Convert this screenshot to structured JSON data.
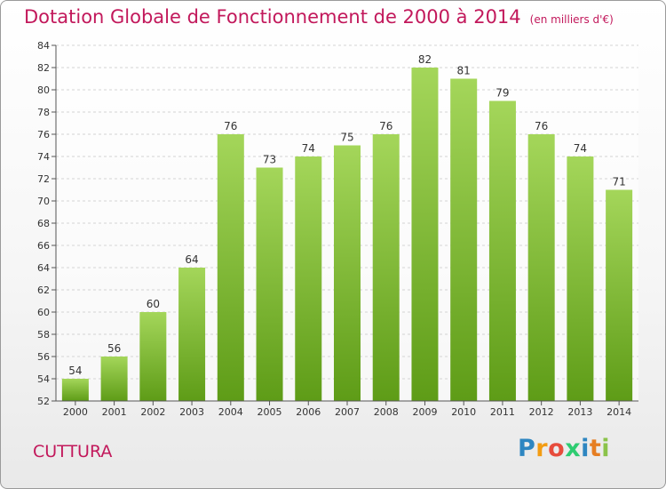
{
  "header": {
    "title": "Dotation Globale de Fonctionnement de 2000 à 2014",
    "unit": "(en milliers d'€)"
  },
  "footer": {
    "commune": "CUTTURA",
    "logo": {
      "text": "Proxiti",
      "letters": [
        "P",
        "r",
        "o",
        "x",
        "i",
        "t",
        "i"
      ],
      "colors": [
        "#2e86c1",
        "#f39c12",
        "#e74c3c",
        "#2ecc71",
        "#2e86c1",
        "#e67e22",
        "#8bc34a"
      ]
    }
  },
  "chart_data": {
    "type": "bar",
    "categories": [
      "2000",
      "2001",
      "2002",
      "2003",
      "2004",
      "2005",
      "2006",
      "2007",
      "2008",
      "2009",
      "2010",
      "2011",
      "2012",
      "2013",
      "2014"
    ],
    "values": [
      54,
      56,
      60,
      64,
      76,
      73,
      74,
      75,
      76,
      82,
      81,
      79,
      76,
      74,
      71
    ],
    "ylim": [
      52,
      84
    ],
    "yticks": [
      52,
      54,
      56,
      58,
      60,
      62,
      64,
      66,
      68,
      70,
      72,
      74,
      76,
      78,
      80,
      82,
      84
    ],
    "grid": true,
    "bar_color_top": "#a4d65a",
    "bar_color_bottom": "#5e9c17"
  }
}
